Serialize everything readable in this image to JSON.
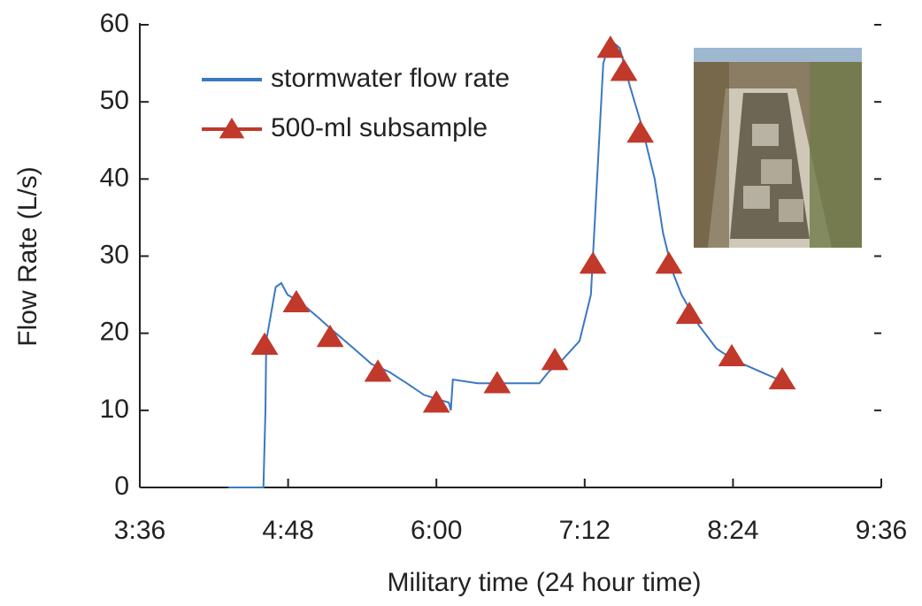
{
  "chart_data": {
    "type": "line",
    "xlabel": "Military time (24 hour time)",
    "ylabel": "Flow Rate (L/s)",
    "xlim": [
      216,
      576
    ],
    "xticks": [
      {
        "value": 216,
        "label": "3:36"
      },
      {
        "value": 288,
        "label": "4:48"
      },
      {
        "value": 360,
        "label": "6:00"
      },
      {
        "value": 432,
        "label": "7:12"
      },
      {
        "value": 504,
        "label": "8:24"
      },
      {
        "value": 576,
        "label": "9:36"
      }
    ],
    "ylim": [
      0,
      60
    ],
    "yticks": [
      0,
      10,
      20,
      30,
      40,
      50,
      60
    ],
    "legend": "upper left",
    "series": [
      {
        "name": "stormwater flow rate",
        "color": "#3a78c2",
        "marker": "none",
        "x": [
          259,
          276,
          277,
          277.4,
          282,
          284.7,
          287.7,
          294,
          302.8,
          309,
          320,
          328.5,
          337,
          345.7,
          354,
          366,
          367,
          368,
          380,
          410,
          414.5,
          421,
          429.5,
          435,
          438,
          441,
          444.5,
          449,
          454,
          459.6,
          466,
          470,
          474.6,
          479,
          487.5,
          496,
          504.7,
          517.5,
          526
        ],
        "values": [
          0,
          0,
          10,
          19,
          26,
          26.5,
          25,
          24,
          22,
          20.5,
          18,
          16,
          15,
          13.5,
          12,
          11,
          10,
          14,
          13.5,
          13.5,
          15,
          16.5,
          19,
          25,
          40,
          55,
          58,
          57,
          52,
          47,
          40,
          33,
          28,
          25,
          21,
          18,
          16.5,
          15,
          14
        ]
      },
      {
        "name": "500-ml subsample",
        "color": "#c0392b",
        "marker": "triangle",
        "x": [
          276.6,
          292,
          308.4,
          331.6,
          360,
          389.5,
          417.5,
          436,
          444.5,
          451,
          459,
          472.9,
          482.8,
          503.4,
          527.9
        ],
        "values": [
          18.5,
          24,
          19.5,
          15,
          11,
          13.5,
          16.5,
          29,
          57,
          54,
          46,
          29,
          22.5,
          17,
          14
        ]
      }
    ]
  }
}
